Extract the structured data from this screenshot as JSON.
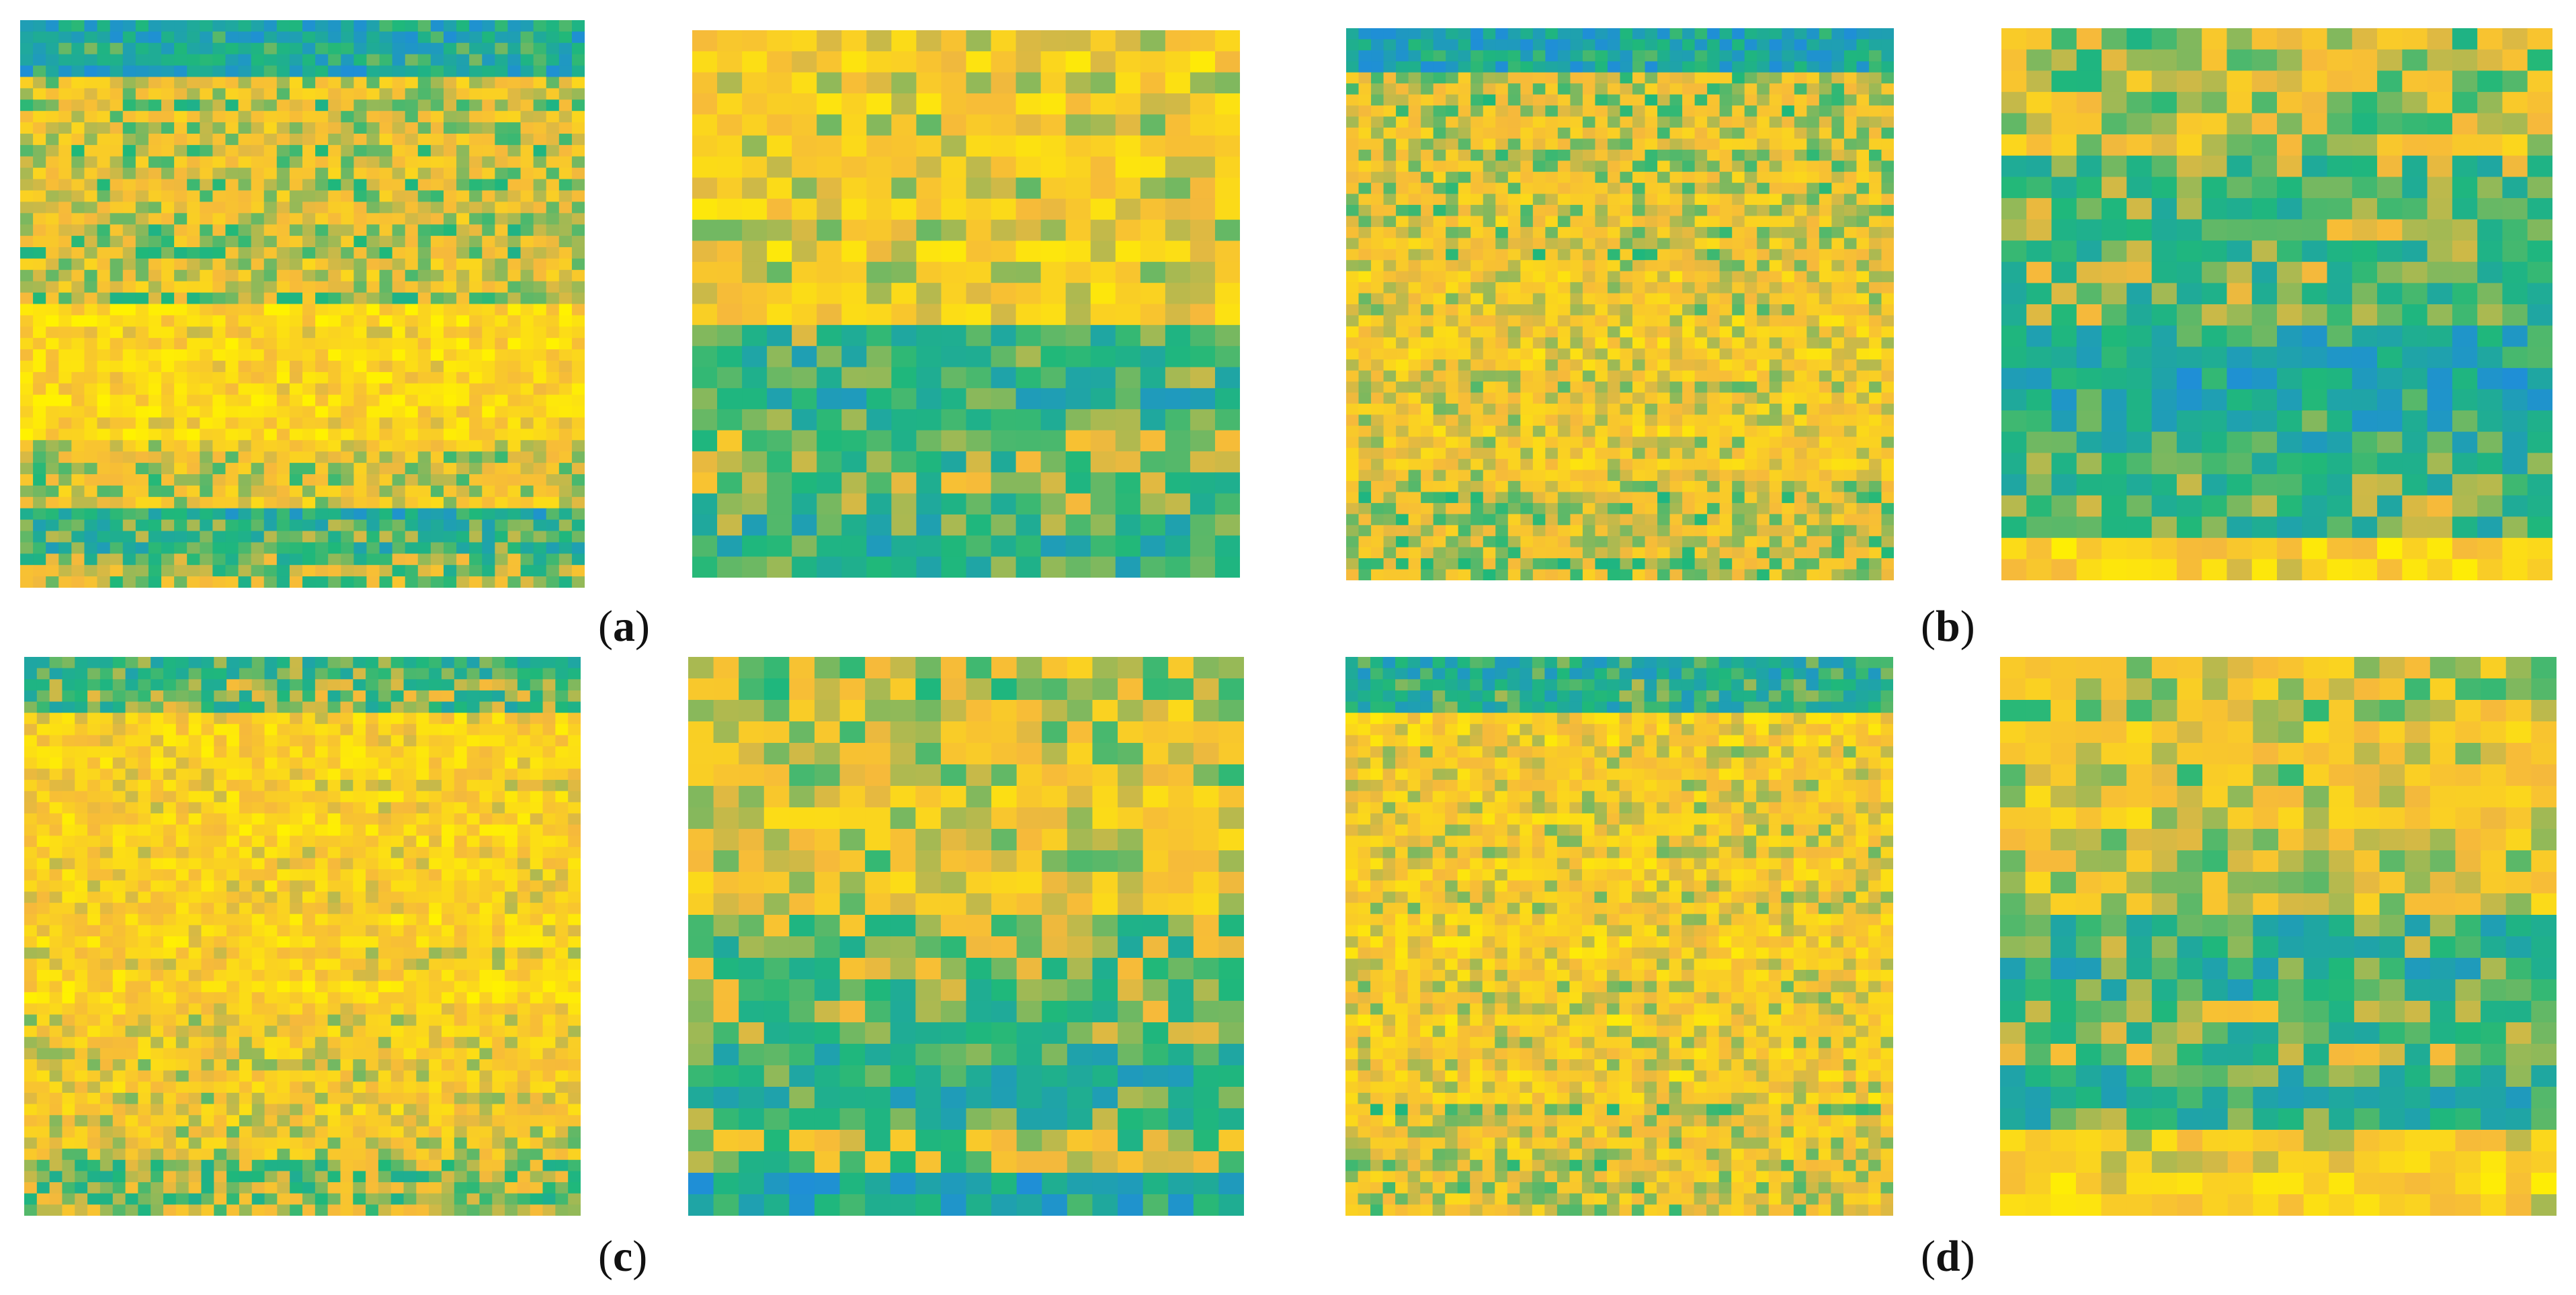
{
  "figure": {
    "groups": [
      {
        "label_open": "(",
        "label_letter": "a",
        "label_close": ")"
      },
      {
        "label_open": "(",
        "label_letter": "b",
        "label_close": ")"
      },
      {
        "label_open": "(",
        "label_letter": "c",
        "label_close": ")"
      },
      {
        "label_open": "(",
        "label_letter": "d",
        "label_close": ")"
      }
    ],
    "panels": [
      {
        "id": "a-left",
        "seed": 11,
        "cols": 44,
        "rows": 50,
        "bands": [
          [
            0.0,
            0.1,
            0.25
          ],
          [
            0.1,
            0.5,
            0.55
          ],
          [
            0.5,
            0.75,
            0.78
          ],
          [
            0.75,
            0.86,
            0.6
          ],
          [
            0.86,
            0.95,
            0.3
          ],
          [
            0.95,
            1.0,
            0.45
          ]
        ]
      },
      {
        "id": "a-right",
        "seed": 23,
        "cols": 22,
        "rows": 26,
        "bands": [
          [
            0.0,
            0.15,
            0.7
          ],
          [
            0.15,
            0.53,
            0.68
          ],
          [
            0.53,
            0.75,
            0.35
          ],
          [
            0.75,
            0.9,
            0.45
          ],
          [
            0.9,
            1.0,
            0.3
          ]
        ]
      },
      {
        "id": "b-left",
        "seed": 37,
        "cols": 44,
        "rows": 50,
        "bands": [
          [
            0.0,
            0.08,
            0.2
          ],
          [
            0.08,
            0.45,
            0.58
          ],
          [
            0.45,
            0.85,
            0.66
          ],
          [
            0.85,
            1.0,
            0.55
          ]
        ]
      },
      {
        "id": "b-right",
        "seed": 41,
        "cols": 22,
        "rows": 26,
        "bands": [
          [
            0.0,
            0.25,
            0.55
          ],
          [
            0.25,
            0.55,
            0.42
          ],
          [
            0.55,
            0.75,
            0.22
          ],
          [
            0.75,
            0.92,
            0.35
          ],
          [
            0.92,
            1.0,
            0.72
          ]
        ]
      },
      {
        "id": "c-left",
        "seed": 53,
        "cols": 44,
        "rows": 50,
        "bands": [
          [
            0.0,
            0.1,
            0.4
          ],
          [
            0.1,
            0.65,
            0.75
          ],
          [
            0.65,
            0.9,
            0.66
          ],
          [
            0.9,
            1.0,
            0.52
          ]
        ]
      },
      {
        "id": "c-right",
        "seed": 67,
        "cols": 22,
        "rows": 26,
        "bands": [
          [
            0.0,
            0.45,
            0.6
          ],
          [
            0.45,
            0.7,
            0.48
          ],
          [
            0.7,
            0.85,
            0.35
          ],
          [
            0.85,
            0.92,
            0.55
          ],
          [
            0.92,
            1.0,
            0.18
          ]
        ]
      },
      {
        "id": "d-left",
        "seed": 79,
        "cols": 44,
        "rows": 50,
        "bands": [
          [
            0.0,
            0.1,
            0.3
          ],
          [
            0.1,
            0.8,
            0.68
          ],
          [
            0.8,
            1.0,
            0.6
          ]
        ]
      },
      {
        "id": "d-right",
        "seed": 83,
        "cols": 22,
        "rows": 26,
        "bands": [
          [
            0.0,
            0.45,
            0.62
          ],
          [
            0.45,
            0.62,
            0.35
          ],
          [
            0.62,
            0.75,
            0.45
          ],
          [
            0.75,
            0.85,
            0.28
          ],
          [
            0.85,
            1.0,
            0.7
          ]
        ]
      }
    ],
    "colors": {
      "low": "#1f8fd6",
      "mid": "#1fb87a",
      "high1": "#f6b93b",
      "high2": "#fff200"
    }
  }
}
